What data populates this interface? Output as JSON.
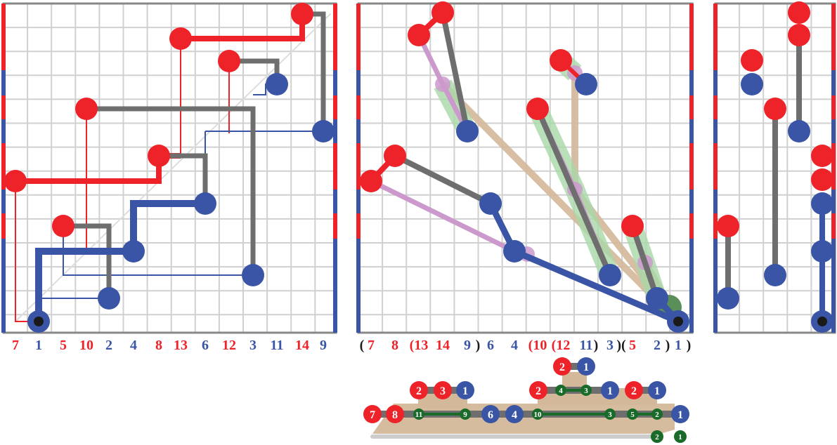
{
  "colors": {
    "red": "#ee2229",
    "blue": "#3a55a6",
    "gray": "#6e6e6e",
    "grid": "#d0d0d0",
    "tan": "#d4b89a",
    "pink": "#cc99cc",
    "lightgreen": "#a8d8a8",
    "darkgreen": "#1a6b2a",
    "black": "#1a1a1a"
  },
  "panel_left": {
    "axis_labels": [
      {
        "text": "7",
        "color": "red"
      },
      {
        "text": "1",
        "color": "blue"
      },
      {
        "text": "5",
        "color": "red"
      },
      {
        "text": "10",
        "color": "red"
      },
      {
        "text": "2",
        "color": "blue"
      },
      {
        "text": "4",
        "color": "blue"
      },
      {
        "text": "8",
        "color": "red"
      },
      {
        "text": "13",
        "color": "red"
      },
      {
        "text": "6",
        "color": "blue"
      },
      {
        "text": "12",
        "color": "red"
      },
      {
        "text": "3",
        "color": "blue"
      },
      {
        "text": "11",
        "color": "blue"
      },
      {
        "text": "14",
        "color": "red"
      },
      {
        "text": "9",
        "color": "blue"
      }
    ]
  },
  "panel_middle": {
    "axis_labels": [
      {
        "text": "(",
        "color": "black"
      },
      {
        "text": "7",
        "color": "red"
      },
      {
        "text": "8",
        "color": "red"
      },
      {
        "text": "(13",
        "color": "red"
      },
      {
        "text": "14",
        "color": "red"
      },
      {
        "text": "9",
        "color": "blue"
      },
      {
        "text": ")",
        "color": "black"
      },
      {
        "text": "6",
        "color": "blue"
      },
      {
        "text": "4",
        "color": "blue"
      },
      {
        "text": "(10",
        "color": "red"
      },
      {
        "text": "(12",
        "color": "red"
      },
      {
        "text": "11",
        "color": "blue"
      },
      {
        "text": ")",
        "color": "black"
      },
      {
        "text": "3",
        "color": "blue"
      },
      {
        "text": ")(",
        "color": "black"
      },
      {
        "text": "5",
        "color": "red"
      },
      {
        "text": "2",
        "color": "blue"
      },
      {
        "text": ")",
        "color": "black"
      },
      {
        "text": "1",
        "color": "blue"
      },
      {
        "text": ")",
        "color": "black"
      }
    ]
  },
  "tree": {
    "nodes": [
      {
        "label": "2",
        "color": "red"
      },
      {
        "label": "1",
        "color": "blue"
      },
      {
        "label": "2",
        "color": "red"
      },
      {
        "label": "3",
        "color": "red"
      },
      {
        "label": "1",
        "color": "blue"
      },
      {
        "label": "2",
        "color": "red"
      },
      {
        "label": "4",
        "color": "darkgreen"
      },
      {
        "label": "3",
        "color": "darkgreen"
      },
      {
        "label": "1",
        "color": "blue"
      },
      {
        "label": "2",
        "color": "red"
      },
      {
        "label": "1",
        "color": "blue"
      },
      {
        "label": "7",
        "color": "red"
      },
      {
        "label": "8",
        "color": "red"
      },
      {
        "label": "11",
        "color": "darkgreen"
      },
      {
        "label": "9",
        "color": "darkgreen"
      },
      {
        "label": "6",
        "color": "blue"
      },
      {
        "label": "4",
        "color": "blue"
      },
      {
        "label": "10",
        "color": "darkgreen"
      },
      {
        "label": "3",
        "color": "darkgreen"
      },
      {
        "label": "5",
        "color": "darkgreen"
      },
      {
        "label": "2",
        "color": "darkgreen"
      },
      {
        "label": "1",
        "color": "blue"
      },
      {
        "label": "2",
        "color": "darkgreen"
      },
      {
        "label": "1",
        "color": "darkgreen"
      }
    ]
  }
}
